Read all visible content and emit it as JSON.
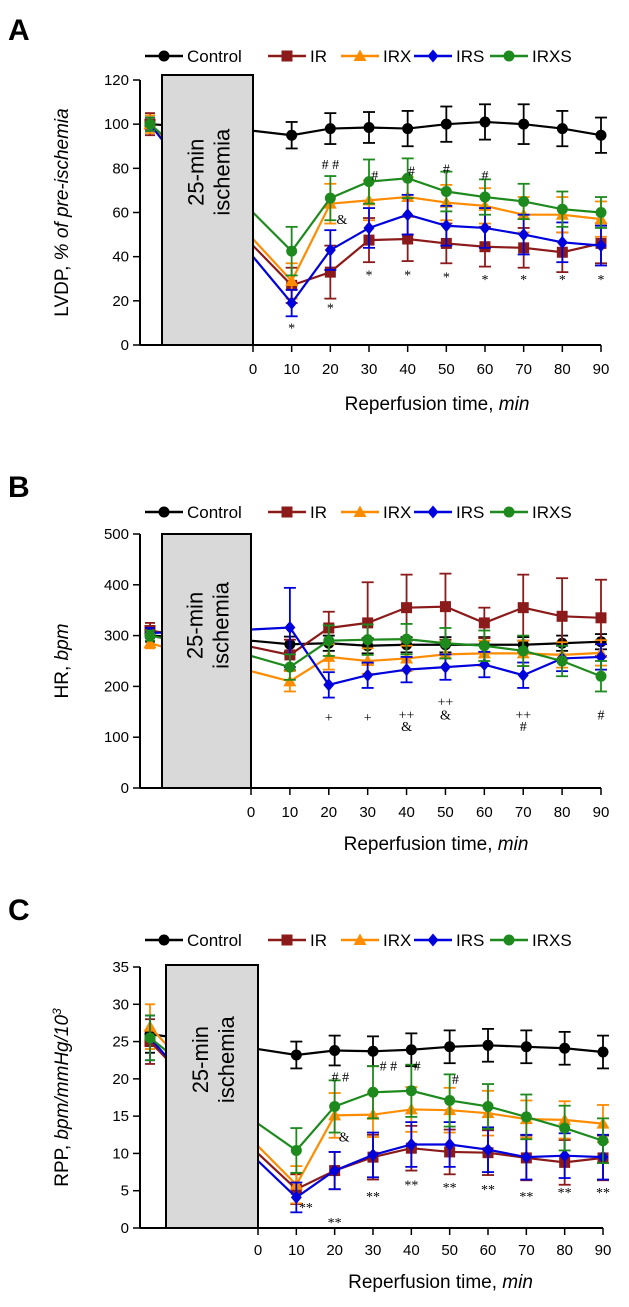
{
  "colors": {
    "Control": "#000000",
    "IR": "#8b1a1a",
    "IRX": "#ff8c00",
    "IRS": "#0000dd",
    "IRXS": "#1e8a1e",
    "ischemia_fill": "#d9d9d9"
  },
  "legend": [
    "Control",
    "IR",
    "IRX",
    "IRS",
    "IRXS"
  ],
  "chart_data": [
    {
      "panel": "A",
      "type": "line",
      "ylabel_main": "LVDP, ",
      "ylabel_italic": "% of pre-ischemia",
      "ylabel_sup": "",
      "xlabel_main": "Reperfusion time, ",
      "xlabel_italic": "min",
      "ylim": [
        0,
        120
      ],
      "yticks": [
        0,
        20,
        40,
        60,
        80,
        100,
        120
      ],
      "x": [
        0,
        10,
        20,
        30,
        40,
        50,
        60,
        70,
        80,
        90
      ],
      "ischemia_label": [
        "25-min",
        "ischemia"
      ],
      "series": [
        {
          "name": "Control",
          "marker": "circle",
          "baseline": 100,
          "baseline_err": 3,
          "pre": 97,
          "values": [
            null,
            95,
            98,
            98.5,
            98,
            100,
            101,
            100,
            98,
            95
          ],
          "errors": [
            null,
            6,
            7,
            7,
            8,
            8,
            8,
            9,
            8,
            8
          ]
        },
        {
          "name": "IR",
          "marker": "square",
          "baseline": 100,
          "baseline_err": 5,
          "pre": 45,
          "values": [
            null,
            27,
            33,
            47.5,
            48,
            46,
            44.5,
            44,
            42,
            46
          ],
          "errors": [
            null,
            8,
            12,
            10,
            10,
            9,
            9,
            9,
            9,
            9
          ]
        },
        {
          "name": "IRX",
          "marker": "triangle",
          "baseline": 100,
          "baseline_err": 4,
          "pre": 48,
          "values": [
            null,
            29,
            64,
            65.5,
            67,
            64.5,
            63,
            59,
            59,
            57
          ],
          "errors": [
            null,
            8,
            9,
            9,
            9,
            8,
            8,
            8,
            8,
            8
          ]
        },
        {
          "name": "IRS",
          "marker": "diamond",
          "baseline": 100,
          "baseline_err": 3,
          "pre": 40,
          "values": [
            null,
            19,
            43,
            53,
            59,
            54,
            53,
            50,
            46.5,
            45
          ],
          "errors": [
            null,
            6,
            9,
            9,
            9,
            9,
            9,
            9,
            9,
            9
          ]
        },
        {
          "name": "IRXS",
          "marker": "circle",
          "baseline": 100,
          "baseline_err": 3,
          "pre": 60,
          "values": [
            null,
            42.5,
            66.5,
            74,
            75.5,
            69.5,
            67,
            65,
            61.5,
            60
          ],
          "errors": [
            null,
            11,
            10,
            10,
            9,
            9,
            8,
            8,
            8,
            7
          ]
        }
      ],
      "annotations": [
        {
          "x": 10,
          "y": 8,
          "text": "*"
        },
        {
          "x": 20,
          "y": 17,
          "text": "*"
        },
        {
          "x": 30,
          "y": 32,
          "text": "*"
        },
        {
          "x": 40,
          "y": 32,
          "text": "*"
        },
        {
          "x": 50,
          "y": 31,
          "text": "*"
        },
        {
          "x": 60,
          "y": 30,
          "text": "*"
        },
        {
          "x": 70,
          "y": 30,
          "text": "*"
        },
        {
          "x": 80,
          "y": 30,
          "text": "*"
        },
        {
          "x": 90,
          "y": 30,
          "text": "*"
        },
        {
          "x": 20,
          "y": 82,
          "text": "# #"
        },
        {
          "x": 31.5,
          "y": 77,
          "text": "#"
        },
        {
          "x": 41,
          "y": 79,
          "text": "#"
        },
        {
          "x": 50,
          "y": 80,
          "text": "#"
        },
        {
          "x": 60,
          "y": 77,
          "text": "#"
        },
        {
          "x": 23,
          "y": 57,
          "text": "&"
        }
      ]
    },
    {
      "panel": "B",
      "type": "line",
      "ylabel_main": "HR, ",
      "ylabel_italic": "bpm",
      "ylabel_sup": "",
      "xlabel_main": "Reperfusion time, ",
      "xlabel_italic": "min",
      "ylim": [
        0,
        500
      ],
      "yticks": [
        0,
        100,
        200,
        300,
        400,
        500
      ],
      "x": [
        0,
        10,
        20,
        30,
        40,
        50,
        60,
        70,
        80,
        90
      ],
      "ischemia_label": [
        "25-min",
        "ischemia"
      ],
      "series": [
        {
          "name": "Control",
          "marker": "circle",
          "baseline": 300,
          "baseline_err": 12,
          "pre": 290,
          "values": [
            null,
            283,
            285,
            280,
            282,
            282,
            282,
            282,
            285,
            288
          ],
          "errors": [
            null,
            15,
            15,
            15,
            15,
            15,
            15,
            15,
            15,
            15
          ]
        },
        {
          "name": "IR",
          "marker": "square",
          "baseline": 310,
          "baseline_err": 15,
          "pre": 278,
          "values": [
            null,
            262,
            315,
            325,
            355,
            357,
            325,
            355,
            338,
            335
          ],
          "errors": [
            null,
            30,
            32,
            80,
            65,
            65,
            30,
            65,
            75,
            75
          ]
        },
        {
          "name": "IRX",
          "marker": "triangle",
          "baseline": 285,
          "baseline_err": 10,
          "pre": 230,
          "values": [
            null,
            210,
            258,
            250,
            255,
            263,
            265,
            265,
            262,
            266
          ],
          "errors": [
            null,
            20,
            25,
            25,
            25,
            25,
            25,
            25,
            25,
            25
          ]
        },
        {
          "name": "IRS",
          "marker": "diamond",
          "baseline": 305,
          "baseline_err": 10,
          "pre": 312,
          "values": [
            null,
            316,
            203,
            222,
            233,
            238,
            243,
            222,
            255,
            258
          ],
          "errors": [
            null,
            78,
            25,
            25,
            25,
            25,
            25,
            25,
            25,
            25
          ]
        },
        {
          "name": "IRXS",
          "marker": "circle",
          "baseline": 300,
          "baseline_err": 10,
          "pre": 260,
          "values": [
            null,
            238,
            290,
            292,
            293,
            285,
            280,
            270,
            250,
            220
          ],
          "errors": [
            null,
            25,
            30,
            30,
            30,
            30,
            30,
            30,
            30,
            30
          ]
        }
      ],
      "annotations": [
        {
          "x": 20,
          "y": 140,
          "text": "+"
        },
        {
          "x": 30,
          "y": 140,
          "text": "+"
        },
        {
          "x": 40,
          "y": 145,
          "text": "++"
        },
        {
          "x": 40,
          "y": 122,
          "text": "&"
        },
        {
          "x": 50,
          "y": 170,
          "text": "++"
        },
        {
          "x": 50,
          "y": 145,
          "text": "&"
        },
        {
          "x": 70,
          "y": 145,
          "text": "++"
        },
        {
          "x": 70,
          "y": 122,
          "text": "#"
        },
        {
          "x": 90,
          "y": 145,
          "text": "#"
        }
      ]
    },
    {
      "panel": "C",
      "type": "line",
      "ylabel_main": "RPP, ",
      "ylabel_italic": "bpm/mmHg/10",
      "ylabel_sup": "3",
      "xlabel_main": "Reperfusion time, ",
      "xlabel_italic": "min",
      "ylim": [
        0,
        35
      ],
      "yticks": [
        0,
        5,
        10,
        15,
        20,
        25,
        30,
        35
      ],
      "x": [
        0,
        10,
        20,
        30,
        40,
        50,
        60,
        70,
        80,
        90
      ],
      "ischemia_label": [
        "25-min",
        "ischemia"
      ],
      "series": [
        {
          "name": "Control",
          "marker": "circle",
          "baseline": 26,
          "baseline_err": 2.5,
          "pre": 24,
          "values": [
            null,
            23.2,
            23.8,
            23.7,
            23.9,
            24.3,
            24.5,
            24.3,
            24.1,
            23.6
          ],
          "errors": [
            null,
            1.8,
            2,
            2,
            2.2,
            2.2,
            2.2,
            2.2,
            2.2,
            2.2
          ]
        },
        {
          "name": "IR",
          "marker": "square",
          "baseline": 25,
          "baseline_err": 3,
          "pre": 10,
          "values": [
            null,
            5.2,
            7.7,
            9.5,
            10.7,
            10.2,
            10.1,
            9.4,
            8.8,
            9.4
          ],
          "errors": [
            null,
            2,
            2.5,
            3,
            3,
            3,
            3,
            3,
            3,
            3
          ]
        },
        {
          "name": "IRX",
          "marker": "triangle",
          "baseline": 27,
          "baseline_err": 3,
          "pre": 11,
          "values": [
            null,
            5.8,
            15.1,
            15.2,
            15.9,
            15.8,
            15.4,
            14.6,
            14.5,
            14
          ],
          "errors": [
            null,
            2.5,
            3,
            3,
            3,
            3,
            3,
            2.5,
            2.5,
            2.5
          ]
        },
        {
          "name": "IRS",
          "marker": "diamond",
          "baseline": 25.5,
          "baseline_err": 3,
          "pre": 9,
          "values": [
            null,
            4.1,
            7.7,
            9.8,
            11.2,
            11.2,
            10.5,
            9.5,
            9.7,
            9.5
          ],
          "errors": [
            null,
            2,
            2.5,
            3,
            3,
            3,
            3,
            3,
            3,
            3
          ]
        },
        {
          "name": "IRXS",
          "marker": "circle",
          "baseline": 25.5,
          "baseline_err": 3,
          "pre": 14,
          "values": [
            null,
            10.4,
            16.3,
            18.2,
            18.4,
            17.1,
            16.3,
            14.9,
            13.4,
            11.7
          ],
          "errors": [
            null,
            3,
            3.5,
            3.5,
            3.5,
            3.5,
            3,
            3,
            3,
            3
          ]
        }
      ],
      "annotations": [
        {
          "x": 12.5,
          "y": 2.8,
          "text": "**"
        },
        {
          "x": 20,
          "y": 0.8,
          "text": "**"
        },
        {
          "x": 30,
          "y": 4.3,
          "text": "**"
        },
        {
          "x": 40,
          "y": 5.8,
          "text": "**"
        },
        {
          "x": 50,
          "y": 5.5,
          "text": "**"
        },
        {
          "x": 60,
          "y": 5.2,
          "text": "**"
        },
        {
          "x": 70,
          "y": 4.3,
          "text": "**"
        },
        {
          "x": 80,
          "y": 4.8,
          "text": "**"
        },
        {
          "x": 90,
          "y": 4.8,
          "text": "**"
        },
        {
          "x": 21.5,
          "y": 20.3,
          "text": "# #"
        },
        {
          "x": 34,
          "y": 21.8,
          "text": "# #"
        },
        {
          "x": 41.5,
          "y": 21.8,
          "text": "#"
        },
        {
          "x": 51.5,
          "y": 20,
          "text": "#"
        },
        {
          "x": 22.5,
          "y": 12.3,
          "text": "&"
        }
      ]
    }
  ]
}
